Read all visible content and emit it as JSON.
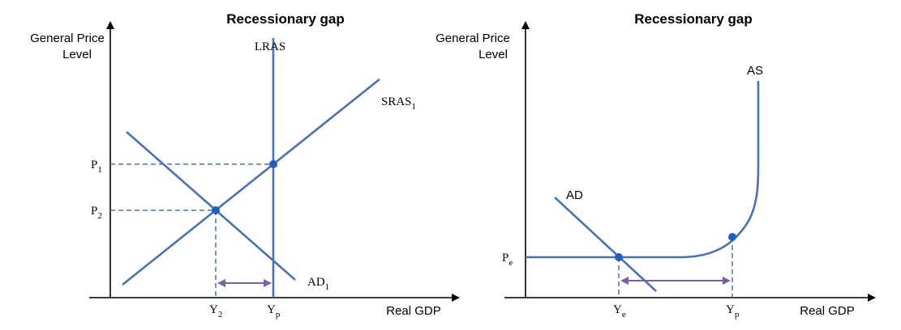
{
  "left_panel": {
    "title": "Recessionary gap",
    "y_axis_label_line1": "General Price",
    "y_axis_label_line2": "Level",
    "x_axis_label": "Real GDP",
    "lras_label": "LRAS",
    "sras_label": "SRAS",
    "sras_sub": "1",
    "ad_label": "AD",
    "ad_sub": "1",
    "p1_label": "P",
    "p1_sub": "1",
    "p2_label": "P",
    "p2_sub": "2",
    "y2_label": "Y",
    "y2_sub": "2",
    "yp_label": "Y",
    "yp_sub": "p"
  },
  "right_panel": {
    "title": "Recessionary gap",
    "y_axis_label_line1": "General Price",
    "y_axis_label_line2": "Level",
    "x_axis_label": "Real GDP",
    "as_label": "AS",
    "ad_label": "AD",
    "pe_label": "P",
    "pe_sub": "e",
    "ye_label": "Y",
    "ye_sub": "e",
    "yp_label": "Y",
    "yp_sub": "p"
  },
  "colors": {
    "curve": "#4a72b2",
    "point": "#1f5fbf",
    "gap_arrow": "#7b5ea7",
    "axis": "#000000"
  }
}
